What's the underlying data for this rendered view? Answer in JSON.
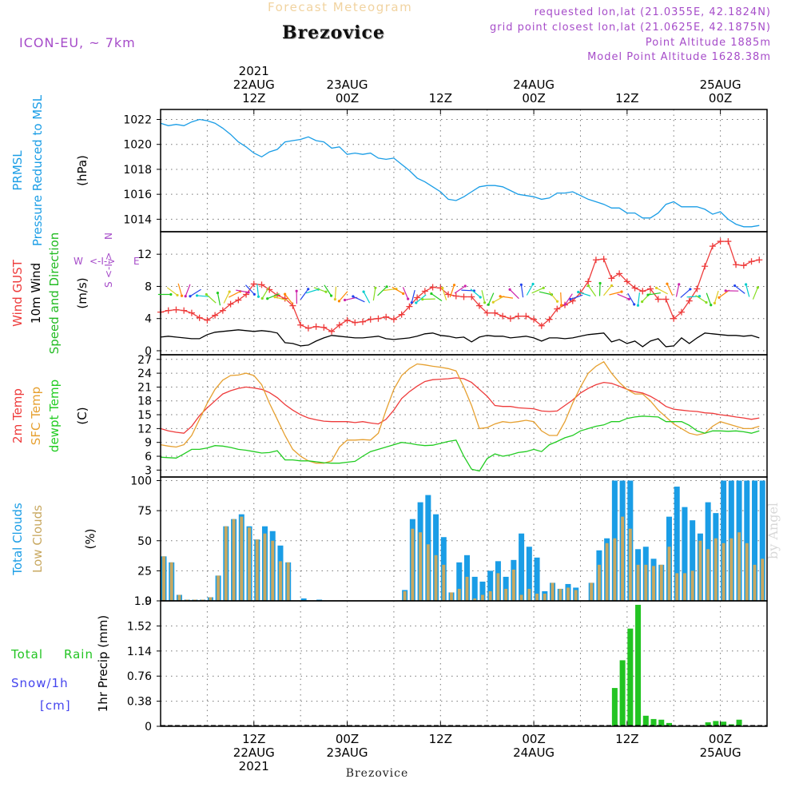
{
  "header": {
    "ghost_title": "Forecast Meteogram",
    "location": "Brezovice",
    "model": "ICON-EU, ~ 7km",
    "requested": "requested lon,lat (21.0355E, 42.1824N)",
    "grid_point": "grid point closest lon,lat (21.0625E, 42.1875N)",
    "point_altitude": "Point Altitude 1885m",
    "model_altitude": "Model Point Altitude 1628.38m",
    "footer_location": "Brezovice",
    "signature": "by Angel"
  },
  "colors": {
    "pressure": "#1a9de6",
    "gust": "#ee3b3b",
    "wind": "#000000",
    "direction_label": "#22bb22",
    "compass": "#a64cc9",
    "temp2m": "#ee3b3b",
    "sfc_temp": "#e6a030",
    "dewpoint": "#22cc22",
    "total_clouds": "#1a9de6",
    "low_clouds": "#c8a860",
    "rain": "#22c422",
    "snow": "#4444ee"
  },
  "time_axis": {
    "top_labels": [
      {
        "hour": 12,
        "lines": [
          "2021",
          "22AUG",
          "12Z"
        ]
      },
      {
        "hour": 24,
        "lines": [
          "23AUG",
          "00Z"
        ]
      },
      {
        "hour": 36,
        "lines": [
          "12Z"
        ]
      },
      {
        "hour": 48,
        "lines": [
          "24AUG",
          "00Z"
        ]
      },
      {
        "hour": 60,
        "lines": [
          "12Z"
        ]
      },
      {
        "hour": 72,
        "lines": [
          "25AUG",
          "00Z"
        ]
      }
    ],
    "bottom_labels": [
      {
        "hour": 12,
        "lines": [
          "12Z",
          "22AUG",
          "2021"
        ]
      },
      {
        "hour": 24,
        "lines": [
          "00Z",
          "23AUG"
        ]
      },
      {
        "hour": 36,
        "lines": [
          "12Z"
        ]
      },
      {
        "hour": 48,
        "lines": [
          "00Z",
          "24AUG"
        ]
      },
      {
        "hour": 60,
        "lines": [
          "12Z"
        ]
      },
      {
        "hour": 72,
        "lines": [
          "00Z",
          "25AUG"
        ]
      }
    ]
  },
  "chart_data": [
    {
      "type": "line",
      "panel": "pressure",
      "ylabels": [
        [
          "PRMSL"
        ],
        [
          "Pressure Reduced to MSL"
        ]
      ],
      "unit": "(hPa)",
      "ylim": [
        1013,
        1022.8
      ],
      "yticks": [
        1014,
        1016,
        1018,
        1020,
        1022
      ],
      "x_start_hour": 0,
      "x_step_hours": 1,
      "series": [
        {
          "name": "PRMSL",
          "values": [
            1021.7,
            1021.5,
            1021.6,
            1021.5,
            1021.8,
            1022.0,
            1021.9,
            1021.7,
            1021.3,
            1020.8,
            1020.2,
            1019.8,
            1019.3,
            1019.0,
            1019.4,
            1019.6,
            1020.2,
            1020.3,
            1020.4,
            1020.6,
            1020.3,
            1020.2,
            1019.7,
            1019.8,
            1019.2,
            1019.3,
            1019.2,
            1019.3,
            1018.9,
            1018.8,
            1018.9,
            1018.4,
            1017.9,
            1017.3,
            1017.0,
            1016.6,
            1016.2,
            1015.6,
            1015.5,
            1015.8,
            1016.2,
            1016.6,
            1016.7,
            1016.7,
            1016.6,
            1016.3,
            1016.0,
            1015.9,
            1015.8,
            1015.6,
            1015.7,
            1016.1,
            1016.1,
            1016.2,
            1015.9,
            1015.6,
            1015.4,
            1015.2,
            1014.9,
            1014.9,
            1014.5,
            1014.5,
            1014.1,
            1014.1,
            1014.5,
            1015.2,
            1015.4,
            1015.0,
            1015.0,
            1015.0,
            1014.8,
            1014.4,
            1014.6,
            1014.0,
            1013.6,
            1013.4,
            1013.4,
            1013.5
          ]
        }
      ]
    },
    {
      "type": "line",
      "panel": "wind",
      "ylabels": [
        [
          "Wind GUST"
        ],
        [
          "10m Wind"
        ],
        [
          "Speed and Direction"
        ]
      ],
      "unit": "(m/s)",
      "compass": {
        "n": "N",
        "s": "S",
        "w": "W",
        "e": "E",
        "arrow_h": "<-I->",
        "arrow_v": "<-I->"
      },
      "ylim": [
        -0.5,
        14.8
      ],
      "yticks": [
        0,
        4,
        8,
        12
      ],
      "x_start_hour": 0,
      "x_step_hours": 1,
      "series": [
        {
          "name": "Wind GUST",
          "values": [
            4.8,
            5.0,
            5.1,
            5.0,
            4.7,
            4.1,
            3.8,
            4.4,
            5.0,
            5.8,
            6.3,
            7.0,
            8.3,
            8.2,
            7.6,
            6.9,
            6.5,
            5.6,
            3.2,
            2.8,
            3.0,
            2.9,
            2.4,
            3.2,
            3.8,
            3.5,
            3.6,
            3.9,
            4.0,
            4.2,
            3.9,
            4.5,
            5.5,
            6.6,
            7.4,
            7.9,
            7.8,
            7.0,
            6.8,
            6.7,
            6.7,
            5.6,
            4.7,
            4.7,
            4.3,
            4.0,
            4.3,
            4.3,
            3.9,
            3.1,
            3.9,
            5.2,
            5.7,
            6.2,
            7.2,
            8.6,
            11.3,
            11.4,
            9.0,
            9.6,
            8.6,
            7.8,
            7.4,
            7.7,
            6.4,
            6.4,
            4.0,
            4.8,
            6.2,
            7.7,
            10.5,
            13.0,
            13.6,
            13.6,
            10.7,
            10.6,
            11.1,
            11.3
          ]
        },
        {
          "name": "10m Wind",
          "values": [
            1.7,
            1.8,
            1.7,
            1.6,
            1.5,
            1.5,
            2.0,
            2.3,
            2.4,
            2.5,
            2.6,
            2.5,
            2.4,
            2.5,
            2.4,
            2.2,
            1.0,
            0.9,
            0.6,
            0.7,
            1.2,
            1.6,
            1.9,
            1.8,
            1.7,
            1.6,
            1.6,
            1.7,
            1.8,
            1.5,
            1.4,
            1.5,
            1.6,
            1.8,
            2.1,
            2.2,
            1.9,
            1.8,
            1.6,
            1.7,
            1.1,
            1.7,
            1.9,
            1.8,
            1.8,
            1.6,
            1.7,
            1.8,
            1.6,
            1.2,
            1.6,
            1.6,
            1.5,
            1.6,
            1.8,
            2.0,
            2.1,
            2.2,
            1.1,
            1.4,
            0.9,
            1.2,
            0.5,
            1.2,
            1.5,
            0.5,
            0.6,
            1.6,
            0.9,
            1.6,
            2.2,
            2.1,
            2.0,
            1.9,
            1.9,
            1.8,
            1.9,
            1.6
          ]
        }
      ]
    },
    {
      "type": "line",
      "panel": "temperature",
      "ylabels": [
        [
          "2m Temp"
        ],
        [
          "SFC Temp"
        ],
        [
          "dewpt Temp"
        ]
      ],
      "unit": "(C)",
      "ylim": [
        1.5,
        28
      ],
      "yticks": [
        3,
        6,
        9,
        12,
        15,
        18,
        21,
        24,
        27
      ],
      "x_start_hour": 0,
      "x_step_hours": 1,
      "series": [
        {
          "name": "2m Temp",
          "values": [
            12.0,
            11.5,
            11.2,
            11.0,
            12.5,
            14.8,
            16.5,
            18.0,
            19.5,
            20.2,
            20.7,
            21.0,
            20.8,
            20.5,
            19.8,
            18.7,
            17.2,
            16.0,
            15.0,
            14.3,
            13.9,
            13.6,
            13.5,
            13.5,
            13.5,
            13.3,
            13.5,
            13.2,
            13.0,
            14.0,
            16.0,
            18.5,
            20.0,
            21.2,
            22.2,
            22.6,
            22.7,
            22.8,
            23.0,
            22.8,
            22.0,
            20.5,
            19.0,
            17.0,
            16.8,
            16.8,
            16.5,
            16.4,
            16.3,
            15.8,
            15.7,
            15.8,
            17.0,
            18.2,
            19.7,
            20.7,
            21.5,
            22.0,
            21.8,
            21.2,
            20.5,
            20.0,
            19.7,
            19.0,
            18.0,
            16.8,
            16.2,
            16.0,
            15.8,
            15.7,
            15.4,
            15.3,
            15.0,
            14.8,
            14.5,
            14.3,
            14.0,
            14.3
          ]
        },
        {
          "name": "SFC Temp",
          "values": [
            8.5,
            8.2,
            8.0,
            8.5,
            10.5,
            14.0,
            17.5,
            20.5,
            22.5,
            23.5,
            23.6,
            24.0,
            23.5,
            21.5,
            17.5,
            14.0,
            10.5,
            7.5,
            6.0,
            5.0,
            4.5,
            4.5,
            5.0,
            8.0,
            9.5,
            9.5,
            9.6,
            9.5,
            11.0,
            16.0,
            20.5,
            23.5,
            25.0,
            26.0,
            25.8,
            25.5,
            25.3,
            25.0,
            24.5,
            21.0,
            17.0,
            12.0,
            12.2,
            13.0,
            13.5,
            13.3,
            13.5,
            13.8,
            13.5,
            11.5,
            10.5,
            10.5,
            13.5,
            17.5,
            21.0,
            24.0,
            25.5,
            26.5,
            24.0,
            22.0,
            20.5,
            19.5,
            19.5,
            18.0,
            16.0,
            14.5,
            13.0,
            12.0,
            11.0,
            10.6,
            11.0,
            12.5,
            13.5,
            13.0,
            12.5,
            12.0,
            12.0,
            12.5
          ]
        },
        {
          "name": "dewpt Temp",
          "values": [
            5.8,
            5.7,
            5.6,
            6.5,
            7.5,
            7.5,
            7.8,
            8.3,
            8.2,
            7.9,
            7.5,
            7.3,
            7.0,
            6.7,
            6.8,
            7.2,
            5.2,
            5.2,
            5.0,
            5.0,
            4.8,
            4.6,
            4.5,
            4.5,
            4.7,
            4.9,
            6.0,
            7.0,
            7.5,
            8.0,
            8.5,
            9.0,
            8.8,
            8.5,
            8.3,
            8.4,
            8.8,
            9.2,
            9.5,
            6.0,
            3.2,
            2.8,
            5.5,
            6.5,
            6.0,
            6.3,
            6.8,
            7.0,
            7.5,
            7.0,
            8.5,
            9.2,
            10.0,
            10.5,
            11.5,
            12.0,
            12.5,
            12.8,
            13.5,
            13.5,
            14.2,
            14.5,
            14.7,
            14.6,
            14.5,
            13.5,
            13.5,
            13.5,
            12.7,
            11.5,
            11.0,
            11.5,
            11.5,
            11.4,
            11.5,
            11.3,
            11.0,
            11.5
          ]
        }
      ]
    },
    {
      "type": "bar",
      "panel": "clouds",
      "ylabels": [
        [
          "Total Clouds"
        ],
        [
          "Low Clouds"
        ]
      ],
      "unit": "(%)",
      "ylim": [
        0,
        103
      ],
      "yticks": [
        0,
        25,
        50,
        75,
        100
      ],
      "x_start_hour": 0,
      "x_step_hours": 1,
      "series": [
        {
          "name": "Total Clouds",
          "values": [
            37,
            32,
            5,
            1,
            1,
            1,
            3,
            21,
            62,
            68,
            72,
            62,
            51,
            62,
            58,
            46,
            32,
            0,
            2,
            0,
            1,
            0,
            0,
            0,
            0,
            0,
            0,
            0,
            0,
            0,
            0,
            9,
            68,
            82,
            88,
            72,
            53,
            7,
            32,
            38,
            20,
            16,
            25,
            33,
            20,
            34,
            56,
            45,
            36,
            8,
            15,
            10,
            14,
            11,
            0,
            15,
            42,
            52,
            100,
            100,
            100,
            43,
            45,
            35,
            30,
            70,
            95,
            78,
            67,
            56,
            82,
            73,
            100,
            100,
            100,
            100,
            100,
            100
          ]
        },
        {
          "name": "Low Clouds",
          "values": [
            37,
            32,
            5,
            1,
            1,
            1,
            3,
            21,
            62,
            68,
            70,
            61,
            51,
            56,
            50,
            33,
            32,
            0,
            0,
            0,
            0,
            0,
            0,
            0,
            0,
            0,
            0,
            0,
            0,
            0,
            0,
            8,
            60,
            57,
            47,
            38,
            30,
            7,
            10,
            20,
            2,
            5,
            8,
            23,
            10,
            26,
            5,
            10,
            6,
            6,
            15,
            10,
            11,
            9,
            0,
            15,
            30,
            48,
            52,
            70,
            60,
            30,
            30,
            29,
            30,
            45,
            23,
            23,
            25,
            50,
            43,
            52,
            48,
            52,
            57,
            48,
            30,
            35
          ]
        }
      ]
    },
    {
      "type": "bar",
      "panel": "precip",
      "ylabels": [
        [
          "Total",
          "Rain"
        ],
        [
          "Snow/1h"
        ],
        [
          "[cm]"
        ]
      ],
      "unit": "1hr Precip (mm)",
      "ylim": [
        0,
        1.9
      ],
      "yticks": [
        0,
        0.38,
        0.76,
        1.14,
        1.52,
        1.9
      ],
      "x_start_hour": 0,
      "x_step_hours": 1,
      "series": [
        {
          "name": "Total Rain",
          "values": [
            0,
            0,
            0,
            0,
            0,
            0,
            0,
            0,
            0,
            0,
            0,
            0,
            0,
            0,
            0,
            0,
            0,
            0,
            0,
            0,
            0,
            0,
            0,
            0,
            0,
            0,
            0,
            0,
            0,
            0,
            0,
            0,
            0,
            0,
            0,
            0,
            0,
            0,
            0,
            0,
            0,
            0,
            0,
            0,
            0,
            0,
            0,
            0,
            0,
            0,
            0,
            0,
            0,
            0,
            0,
            0,
            0,
            0,
            0.58,
            1.0,
            1.48,
            1.84,
            0.16,
            0.11,
            0.1,
            0.05,
            0,
            0,
            0,
            0,
            0.06,
            0.08,
            0.07,
            0.03,
            0.1,
            0,
            0,
            0
          ]
        }
      ]
    }
  ]
}
